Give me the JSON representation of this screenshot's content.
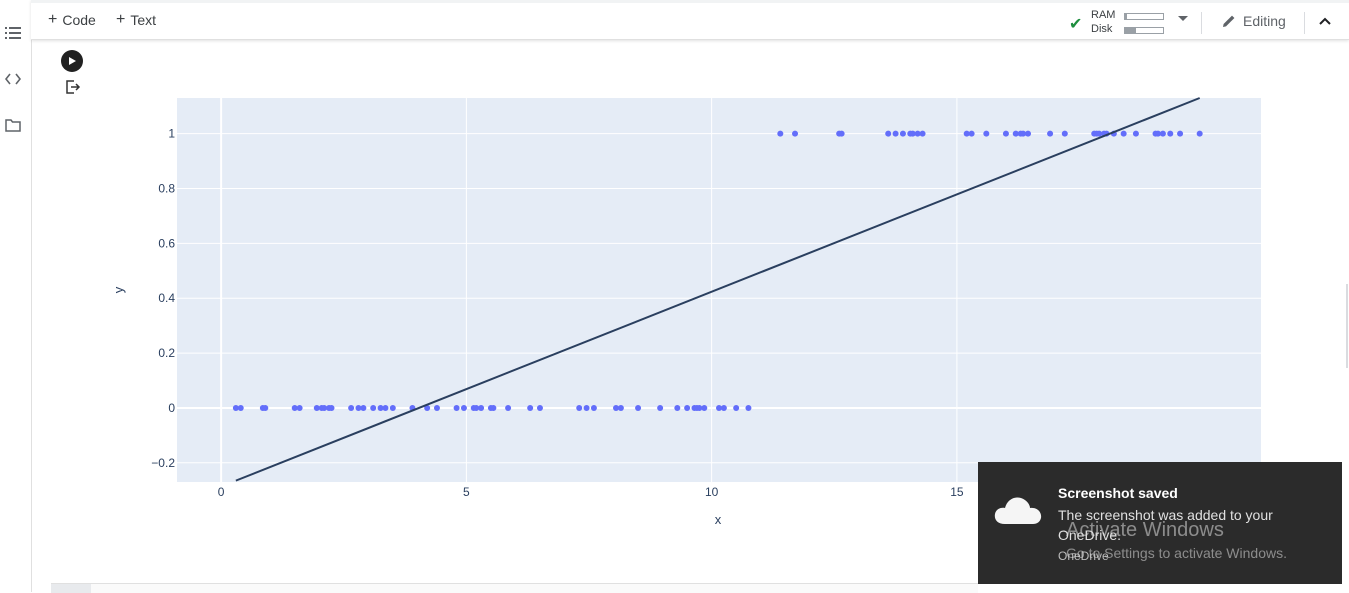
{
  "toolbar": {
    "add_code_label": "Code",
    "add_text_label": "Text",
    "ram_label": "RAM",
    "disk_label": "Disk",
    "ram_usage": 0.05,
    "disk_usage": 0.3,
    "editing_label": "Editing"
  },
  "left_rail": {
    "icons": [
      "table-of-contents-icon",
      "code-snippets-icon",
      "files-icon"
    ]
  },
  "chart_data": {
    "type": "scatter",
    "xlabel": "x",
    "ylabel": "y",
    "xlim": [
      -0.9,
      21.2
    ],
    "ylim": [
      -0.27,
      1.13
    ],
    "x_ticks": [
      0,
      5,
      10,
      15
    ],
    "y_ticks": [
      -0.2,
      0,
      0.2,
      0.4,
      0.6,
      0.8,
      1
    ],
    "y_tick_labels": [
      "−0.2",
      "0",
      "0.2",
      "0.4",
      "0.6",
      "0.8",
      "1"
    ],
    "grid": true,
    "series": [
      {
        "mode": "markers",
        "color": "#636efa",
        "x": [
          0.3,
          0.4,
          0.85,
          0.9,
          1.5,
          1.6,
          1.95,
          2.05,
          2.1,
          2.2,
          2.25,
          2.65,
          2.8,
          2.9,
          3.1,
          3.25,
          3.35,
          3.5,
          3.9,
          4.2,
          4.4,
          4.8,
          4.95,
          5.15,
          5.2,
          5.3,
          5.5,
          5.55,
          5.85,
          6.3,
          6.5,
          7.3,
          7.45,
          7.6,
          8.05,
          8.15,
          8.5,
          8.95,
          9.3,
          9.5,
          9.65,
          9.7,
          9.75,
          9.85,
          10.15,
          10.25,
          10.5,
          10.75,
          11.4,
          11.7,
          12.6,
          12.65,
          13.6,
          13.75,
          13.9,
          14.05,
          14.1,
          14.2,
          14.3,
          15.2,
          15.3,
          15.6,
          16.0,
          16.2,
          16.3,
          16.35,
          16.45,
          16.9,
          17.2,
          17.8,
          17.85,
          17.9,
          18.0,
          18.05,
          18.2,
          18.4,
          18.65,
          19.05,
          19.1,
          19.2,
          19.35,
          19.55,
          19.95
        ],
        "y": [
          0,
          0,
          0,
          0,
          0,
          0,
          0,
          0,
          0,
          0,
          0,
          0,
          0,
          0,
          0,
          0,
          0,
          0,
          0,
          0,
          0,
          0,
          0,
          0,
          0,
          0,
          0,
          0,
          0,
          0,
          0,
          0,
          0,
          0,
          0,
          0,
          0,
          0,
          0,
          0,
          0,
          0,
          0,
          0,
          0,
          0,
          0,
          0,
          1,
          1,
          1,
          1,
          1,
          1,
          1,
          1,
          1,
          1,
          1,
          1,
          1,
          1,
          1,
          1,
          1,
          1,
          1,
          1,
          1,
          1,
          1,
          1,
          1,
          1,
          1,
          1,
          1,
          1,
          1,
          1,
          1,
          1,
          1
        ]
      },
      {
        "mode": "lines",
        "color": "#2a3f5f",
        "x": [
          0.3,
          19.95
        ],
        "y": [
          -0.265,
          1.13
        ]
      }
    ]
  },
  "toast": {
    "title": "Screenshot saved",
    "message": "The screenshot was added to your OneDrive.",
    "source": "OneDrive"
  },
  "watermark": {
    "title": "Activate Windows",
    "subtitle": "Go to Settings to activate Windows."
  }
}
